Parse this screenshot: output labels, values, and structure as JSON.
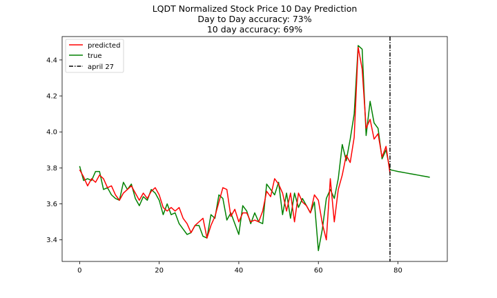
{
  "chart_data": {
    "type": "line",
    "title_lines": [
      "LQDT Normalized Stock Price 10 Day Prediction",
      "Day to Day accuracy: 73%",
      "10 day accuracy: 69%"
    ],
    "xlabel": "",
    "ylabel": "",
    "xlim": [
      -4.4,
      92.4
    ],
    "ylim": [
      3.28,
      4.53
    ],
    "x_ticks": [
      0,
      20,
      40,
      60,
      80
    ],
    "y_ticks": [
      3.4,
      3.6,
      3.8,
      4.0,
      4.2,
      4.4
    ],
    "legend_placement": "top-left",
    "grid": false,
    "series": [
      {
        "name": "predicted",
        "color": "#ff0000",
        "x": [
          0,
          1,
          2,
          3,
          4,
          5,
          6,
          7,
          8,
          9,
          10,
          11,
          12,
          13,
          14,
          15,
          16,
          17,
          18,
          19,
          20,
          21,
          22,
          23,
          24,
          25,
          26,
          27,
          28,
          29,
          30,
          31,
          32,
          33,
          34,
          35,
          36,
          37,
          38,
          39,
          40,
          41,
          42,
          43,
          44,
          45,
          46,
          47,
          48,
          49,
          50,
          51,
          52,
          53,
          54,
          55,
          56,
          57,
          58,
          59,
          60,
          61,
          62,
          63,
          64,
          65,
          66,
          67,
          68,
          69,
          70,
          71,
          72,
          73,
          74,
          75,
          76,
          77,
          78
        ],
        "y": [
          3.79,
          3.75,
          3.7,
          3.74,
          3.72,
          3.76,
          3.74,
          3.69,
          3.7,
          3.65,
          3.62,
          3.66,
          3.68,
          3.7,
          3.66,
          3.62,
          3.66,
          3.63,
          3.67,
          3.69,
          3.65,
          3.58,
          3.56,
          3.58,
          3.56,
          3.58,
          3.52,
          3.49,
          3.44,
          3.48,
          3.5,
          3.52,
          3.41,
          3.48,
          3.53,
          3.61,
          3.69,
          3.68,
          3.53,
          3.57,
          3.5,
          3.55,
          3.55,
          3.5,
          3.51,
          3.5,
          3.56,
          3.67,
          3.64,
          3.74,
          3.71,
          3.66,
          3.56,
          3.66,
          3.5,
          3.66,
          3.61,
          3.59,
          3.55,
          3.65,
          3.62,
          3.49,
          3.4,
          3.74,
          3.5,
          3.68,
          3.76,
          3.87,
          3.83,
          3.97,
          4.47,
          4.35,
          4.02,
          4.07,
          3.96,
          3.99,
          3.86,
          3.92,
          3.77
        ]
      },
      {
        "name": "true",
        "color": "#008000",
        "x": [
          0,
          1,
          2,
          3,
          4,
          5,
          6,
          7,
          8,
          9,
          10,
          11,
          12,
          13,
          14,
          15,
          16,
          17,
          18,
          19,
          20,
          21,
          22,
          23,
          24,
          25,
          26,
          27,
          28,
          29,
          30,
          31,
          32,
          33,
          34,
          35,
          36,
          37,
          38,
          39,
          40,
          41,
          42,
          43,
          44,
          45,
          46,
          47,
          48,
          49,
          50,
          51,
          52,
          53,
          54,
          55,
          56,
          57,
          58,
          59,
          60,
          61,
          62,
          63,
          64,
          65,
          66,
          67,
          68,
          69,
          70,
          71,
          72,
          73,
          74,
          75,
          76,
          77,
          78,
          79,
          80,
          81,
          82,
          83,
          84,
          85,
          86,
          87,
          88
        ],
        "y": [
          3.81,
          3.73,
          3.74,
          3.73,
          3.78,
          3.78,
          3.68,
          3.69,
          3.65,
          3.63,
          3.62,
          3.72,
          3.68,
          3.71,
          3.63,
          3.59,
          3.64,
          3.62,
          3.68,
          3.66,
          3.62,
          3.54,
          3.6,
          3.54,
          3.55,
          3.49,
          3.46,
          3.43,
          3.44,
          3.48,
          3.48,
          3.42,
          3.41,
          3.54,
          3.52,
          3.65,
          3.63,
          3.51,
          3.55,
          3.49,
          3.43,
          3.59,
          3.56,
          3.49,
          3.55,
          3.5,
          3.49,
          3.71,
          3.68,
          3.65,
          3.72,
          3.54,
          3.66,
          3.52,
          3.66,
          3.58,
          3.63,
          3.59,
          3.55,
          3.61,
          3.34,
          3.46,
          3.63,
          3.68,
          3.63,
          3.74,
          3.93,
          3.84,
          3.96,
          4.1,
          4.48,
          4.46,
          3.98,
          4.17,
          4.05,
          4.02,
          3.85,
          3.9,
          3.79,
          3.785,
          3.78,
          3.776,
          3.772,
          3.768,
          3.764,
          3.76,
          3.756,
          3.752,
          3.748
        ]
      }
    ],
    "vline": {
      "name": "april 27",
      "x": 78,
      "color": "#000000",
      "style": "dash-dot"
    }
  }
}
